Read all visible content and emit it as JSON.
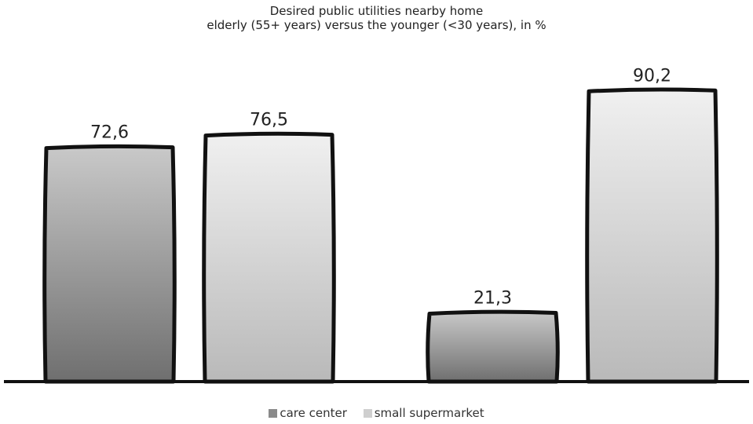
{
  "chart_data": {
    "type": "bar",
    "title": "Desired public utilities nearby home",
    "subtitle": "elderly (55+ years) versus the younger (<30 years), in %",
    "groups": [
      {
        "bars": [
          {
            "series": "care center",
            "value": 72.6,
            "label": "72,6"
          },
          {
            "series": "small supermarket",
            "value": 76.5,
            "label": "76,5"
          }
        ]
      },
      {
        "bars": [
          {
            "series": "care center",
            "value": 21.3,
            "label": "21,3"
          },
          {
            "series": "small supermarket",
            "value": 90.2,
            "label": "90,2"
          }
        ]
      }
    ],
    "series": [
      {
        "name": "care center",
        "color": "#8a8a8a"
      },
      {
        "name": "small supermarket",
        "color": "#cfcfcf"
      }
    ],
    "ylim": [
      0,
      100
    ],
    "legend_position": "bottom-center",
    "grid": false
  }
}
